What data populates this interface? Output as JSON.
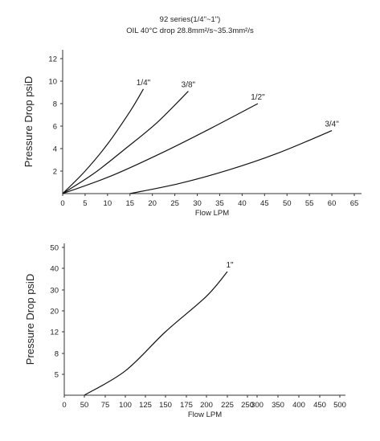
{
  "title": "92 series(1/4\"~1\")",
  "subtitle": "OIL 40°C drop 28.8mm²/s~35.3mm²/s",
  "colors": {
    "line": "#111111",
    "axis": "#333333",
    "text": "#222222"
  },
  "chart_data": [
    {
      "type": "line",
      "xlabel": "Flow LPM",
      "ylabel": "Pressure Drop psiD",
      "xlim": [
        0,
        65
      ],
      "ylim": [
        0,
        12
      ],
      "x_ticks": [
        0,
        5,
        10,
        15,
        20,
        25,
        30,
        35,
        40,
        45,
        50,
        55,
        60,
        65
      ],
      "y_ticks": [
        2,
        4,
        6,
        8,
        10,
        12
      ],
      "grid": false,
      "series": [
        {
          "name": "1/4\"",
          "x": [
            0,
            5,
            10,
            15,
            18
          ],
          "y": [
            0,
            2.0,
            4.4,
            7.3,
            9.3
          ]
        },
        {
          "name": "3/8\"",
          "x": [
            0,
            7,
            14,
            21,
            28
          ],
          "y": [
            0,
            1.8,
            4.0,
            6.3,
            9.1
          ]
        },
        {
          "name": "1/2\"",
          "x": [
            0,
            11,
            22,
            33,
            43.5
          ],
          "y": [
            0,
            1.6,
            3.6,
            5.8,
            8.0
          ]
        },
        {
          "name": "3/4\"",
          "x": [
            15,
            26,
            37,
            48,
            60
          ],
          "y": [
            0,
            0.9,
            2.1,
            3.6,
            5.6
          ]
        }
      ]
    },
    {
      "type": "line",
      "xlabel": "Flow LPM",
      "ylabel": "Pressure Drop psiD",
      "xlim": [
        0,
        500
      ],
      "y_ticks": [
        5,
        8,
        12,
        20,
        30,
        40,
        50
      ],
      "x_ticks": [
        0,
        50,
        75,
        100,
        125,
        150,
        175,
        200,
        225,
        250,
        300,
        350,
        400,
        450,
        500
      ],
      "grid": false,
      "series": [
        {
          "name": "1\"",
          "x": [
            50,
            100,
            150,
            200,
            225
          ],
          "y": [
            0,
            5.5,
            12,
            27,
            38.5
          ]
        }
      ]
    }
  ]
}
